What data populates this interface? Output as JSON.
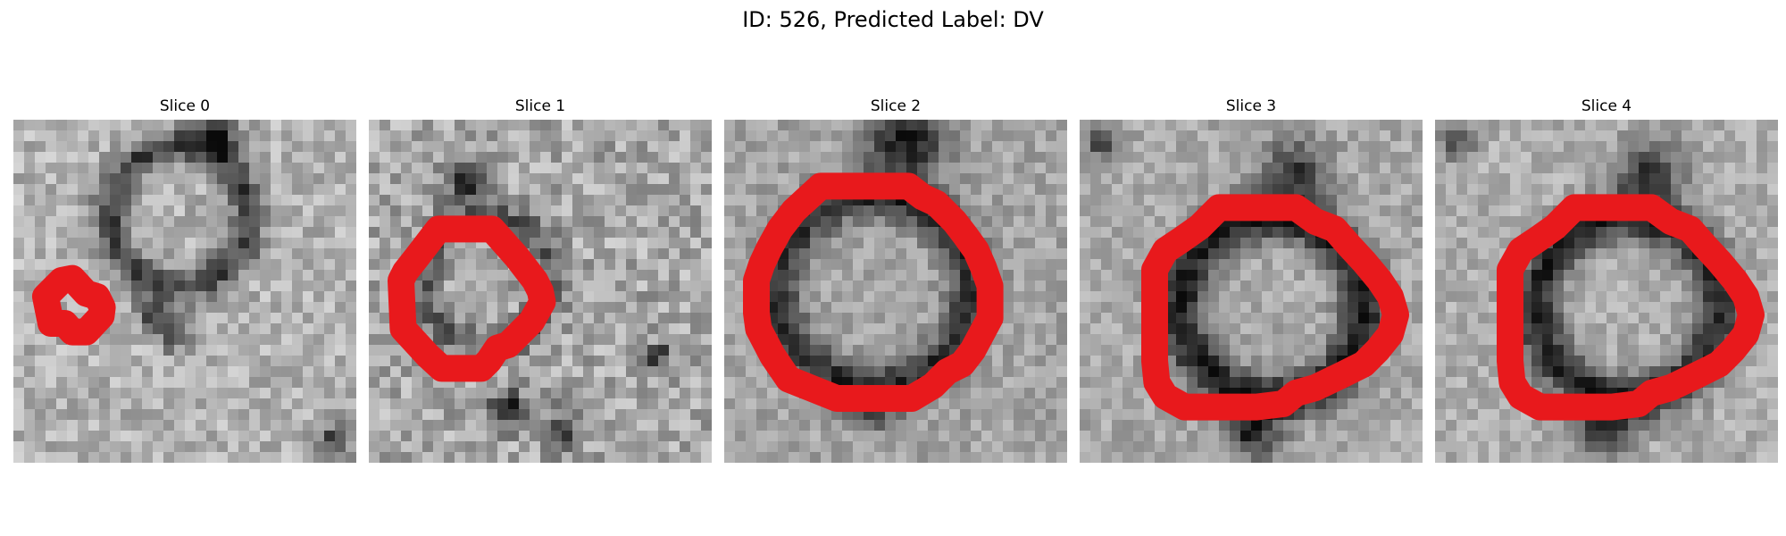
{
  "figure": {
    "title": "ID: 526, Predicted Label: DV",
    "contour_color": "#e8191c",
    "image_colormap": "gray"
  },
  "panels": [
    {
      "title": "Slice 0"
    },
    {
      "title": "Slice 1"
    },
    {
      "title": "Slice 2"
    },
    {
      "title": "Slice 3"
    },
    {
      "title": "Slice 4"
    }
  ]
}
